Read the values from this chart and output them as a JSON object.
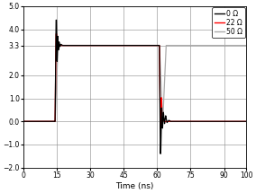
{
  "xlabel": "Time (ns)",
  "xlim": [
    0,
    100
  ],
  "ylim": [
    -2,
    5
  ],
  "yticks": [
    -2,
    -1,
    0,
    1,
    2,
    3.3,
    4,
    5
  ],
  "xticks": [
    0,
    15,
    30,
    45,
    60,
    75,
    90,
    100
  ],
  "legend": [
    "0 Ω",
    "22 Ω",
    "50 Ω"
  ],
  "colors": [
    "black",
    "red",
    "#aaaaaa"
  ],
  "figsize": [
    2.84,
    2.15
  ],
  "dpi": 100
}
